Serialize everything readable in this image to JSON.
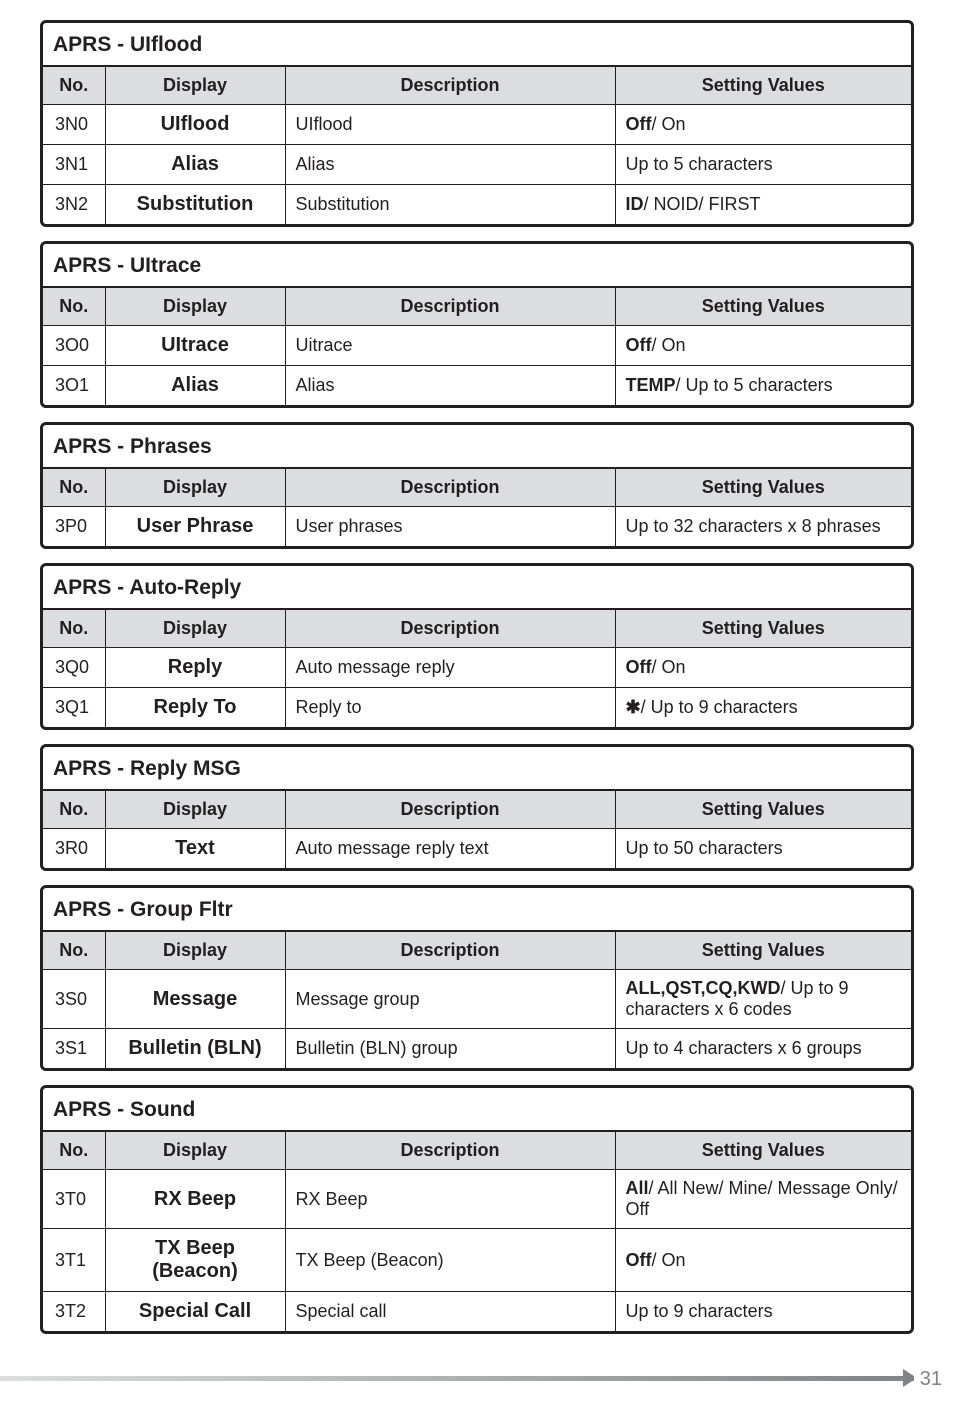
{
  "page_number": "31",
  "headers": {
    "no": "No.",
    "display": "Display",
    "description": "Description",
    "setting": "Setting Values"
  },
  "sections": [
    {
      "title": "APRS - UIflood",
      "rows": [
        {
          "no": "3N0",
          "display": "UIflood",
          "desc": "UIflood",
          "val_html": "<span class='b'>Off</span>/ On"
        },
        {
          "no": "3N1",
          "display": "Alias",
          "desc": "Alias",
          "val_html": "Up to 5 characters"
        },
        {
          "no": "3N2",
          "display": "Substitution",
          "desc": "Substitution",
          "val_html": "<span class='b'>ID</span>/ NOID/ FIRST"
        }
      ]
    },
    {
      "title": "APRS - UItrace",
      "rows": [
        {
          "no": "3O0",
          "display": "UItrace",
          "desc": "Uitrace",
          "val_html": "<span class='b'>Off</span>/ On"
        },
        {
          "no": "3O1",
          "display": "Alias",
          "desc": "Alias",
          "val_html": "<span class='b'>TEMP</span>/ Up to 5 characters"
        }
      ]
    },
    {
      "title": "APRS - Phrases",
      "rows": [
        {
          "no": "3P0",
          "display": "User Phrase",
          "desc": "User phrases",
          "val_html": "Up to 32 characters x 8 phrases"
        }
      ]
    },
    {
      "title": "APRS - Auto-Reply",
      "rows": [
        {
          "no": "3Q0",
          "display": "Reply",
          "desc": "Auto message reply",
          "val_html": "<span class='b'>Off</span>/ On"
        },
        {
          "no": "3Q1",
          "display": "Reply To",
          "desc": "Reply to",
          "val_html": "<span class='b'>&#10033;</span>/ Up to 9 characters"
        }
      ]
    },
    {
      "title": "APRS - Reply MSG",
      "rows": [
        {
          "no": "3R0",
          "display": "Text",
          "desc": "Auto message reply text",
          "val_html": "Up to 50 characters"
        }
      ]
    },
    {
      "title": "APRS - Group Fltr",
      "rows": [
        {
          "no": "3S0",
          "display": "Message",
          "desc": "Message group",
          "val_html": "<span class='b'>ALL,QST,CQ,KWD</span>/ Up to 9 characters x 6 codes"
        },
        {
          "no": "3S1",
          "display": "Bulletin (BLN)",
          "desc": "Bulletin (BLN) group",
          "val_html": "Up to 4 characters x 6 groups"
        }
      ]
    },
    {
      "title": "APRS - Sound",
      "rows": [
        {
          "no": "3T0",
          "display": "RX Beep",
          "desc": "RX Beep",
          "val_html": "<span class='b'>All</span>/ All New/ Mine/ Message Only/ Off"
        },
        {
          "no": "3T1",
          "display": "TX Beep<br>(Beacon)",
          "desc": "TX Beep (Beacon)",
          "val_html": "<span class='b'>Off</span>/ On"
        },
        {
          "no": "3T2",
          "display": "Special Call",
          "desc": "Special call",
          "val_html": "Up to 9 characters"
        }
      ]
    }
  ]
}
